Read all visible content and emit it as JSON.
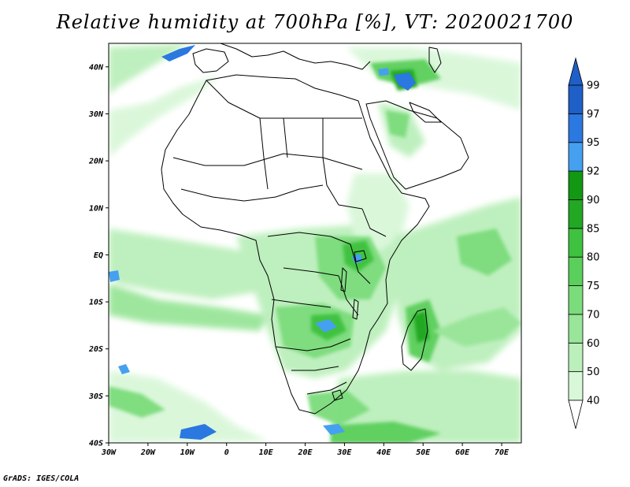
{
  "title": "Relative humidity at 700hPa [%], VT: 2020021700",
  "credit": "GrADS: IGES/COLA",
  "map": {
    "lon_range": [
      -30,
      75
    ],
    "lat_range": [
      -40,
      45
    ],
    "lat_ticks": [
      {
        "value": 40,
        "label": "40N"
      },
      {
        "value": 30,
        "label": "30N"
      },
      {
        "value": 20,
        "label": "20N"
      },
      {
        "value": 10,
        "label": "10N"
      },
      {
        "value": 0,
        "label": "EQ"
      },
      {
        "value": -10,
        "label": "10S"
      },
      {
        "value": -20,
        "label": "20S"
      },
      {
        "value": -30,
        "label": "30S"
      },
      {
        "value": -40,
        "label": "40S"
      }
    ],
    "lon_ticks": [
      {
        "value": -30,
        "label": "30W"
      },
      {
        "value": -20,
        "label": "20W"
      },
      {
        "value": -10,
        "label": "10W"
      },
      {
        "value": 0,
        "label": "0"
      },
      {
        "value": 10,
        "label": "10E"
      },
      {
        "value": 20,
        "label": "20E"
      },
      {
        "value": 30,
        "label": "30E"
      },
      {
        "value": 40,
        "label": "40E"
      },
      {
        "value": 50,
        "label": "50E"
      },
      {
        "value": 60,
        "label": "60E"
      },
      {
        "value": 70,
        "label": "70E"
      }
    ]
  },
  "colorbar": {
    "levels": [
      {
        "label": "40",
        "color": "#f0fdf0"
      },
      {
        "label": "50",
        "color": "#d9f7d9"
      },
      {
        "label": "60",
        "color": "#bbefbb"
      },
      {
        "label": "70",
        "color": "#99e599"
      },
      {
        "label": "75",
        "color": "#7bdc7b"
      },
      {
        "label": "80",
        "color": "#5bcf5b"
      },
      {
        "label": "85",
        "color": "#3fc23f"
      },
      {
        "label": "90",
        "color": "#22a822"
      },
      {
        "label": "92",
        "color": "#129812"
      },
      {
        "label": "95",
        "color": "#46a0f0"
      },
      {
        "label": "97",
        "color": "#2b78e0"
      },
      {
        "label": "99",
        "color": "#1f5fc8"
      }
    ],
    "low_arrow_color": "#ffffff",
    "high_arrow_color": "#1f5fc8"
  }
}
